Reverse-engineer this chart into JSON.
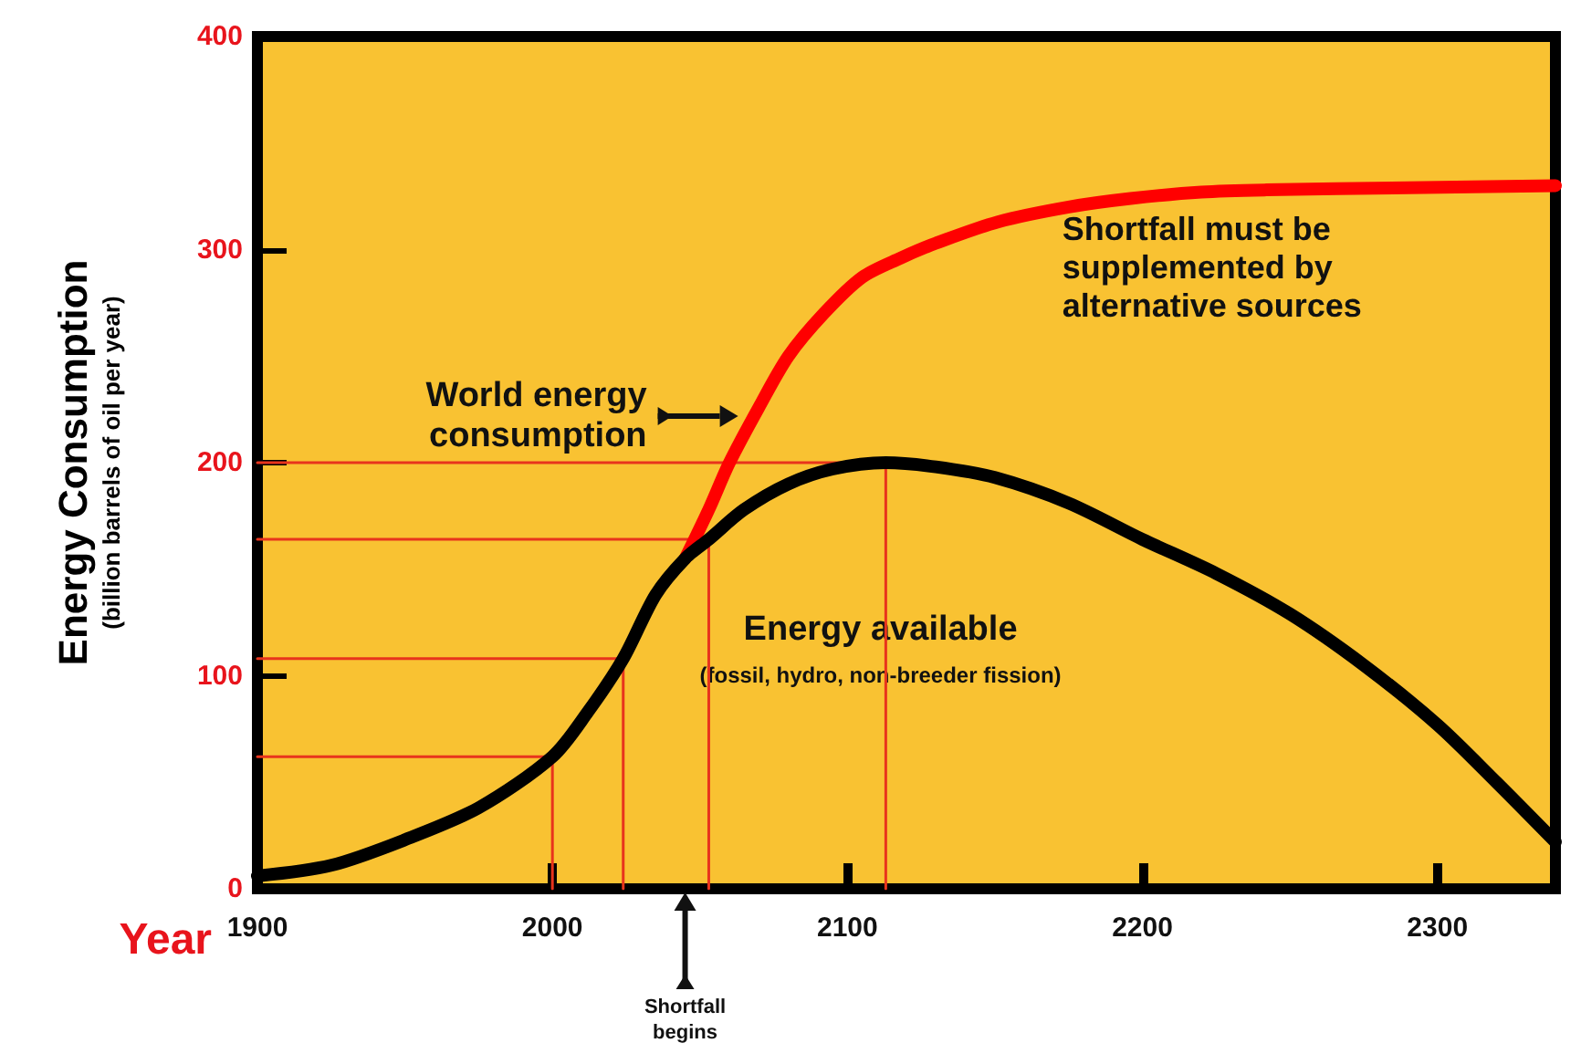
{
  "chart_data": {
    "type": "line",
    "xlabel": "Year",
    "ylabel": "Energy Consumption\n(billion barrels of oil per year)",
    "xlim": [
      1900,
      2340
    ],
    "xticks": [
      1900,
      2000,
      2100,
      2200,
      2300
    ],
    "ylim": [
      0,
      400
    ],
    "yticks": [
      0,
      100,
      200,
      300,
      400
    ],
    "grid": false,
    "marker": "none",
    "series": [
      {
        "color": "#000000",
        "x": [
          1900,
          1925,
          1950,
          1975,
          2000,
          2012,
          2024,
          2035,
          2045,
          2053,
          2065,
          2080,
          2095,
          2113,
          2130,
          2150,
          2175,
          2200,
          2225,
          2250,
          2275,
          2300,
          2320,
          2340
        ],
        "values": [
          6,
          11,
          23,
          38,
          62,
          83,
          108,
          138,
          155,
          164,
          178,
          190,
          197,
          200,
          198,
          193,
          181,
          164,
          148,
          129,
          105,
          77,
          50,
          22
        ]
      },
      {
        "color": "#ff0000",
        "x": [
          2045,
          2053,
          2060,
          2070,
          2080,
          2092,
          2105,
          2118,
          2130,
          2151,
          2175,
          2196,
          2220,
          2242,
          2290,
          2340
        ],
        "values": [
          155,
          178,
          200,
          226,
          250,
          270,
          287,
          296,
          303,
          313,
          320,
          324,
          327,
          328,
          329,
          330
        ]
      },
      {
        "color": "#e8341c",
        "x": [
          1900,
          2000,
          2000
        ],
        "values": [
          62,
          62,
          0
        ]
      },
      {
        "color": "#e8341c",
        "x": [
          1900,
          2024,
          2024
        ],
        "values": [
          108,
          108,
          0
        ]
      },
      {
        "color": "#e8341c",
        "x": [
          1900,
          2053,
          2053
        ],
        "values": [
          164,
          164,
          0
        ]
      },
      {
        "color": "#e8341c",
        "x": [
          1900,
          2113,
          2113
        ],
        "values": [
          200,
          200,
          0
        ]
      }
    ],
    "annotations": [
      "World energy\nconsumption",
      "Shortfall\nbegins",
      "Shortfall must be\nsupplemented by\nalternative sources",
      "Energy available",
      "(fossil, hydro, non-breeder fission)"
    ]
  }
}
